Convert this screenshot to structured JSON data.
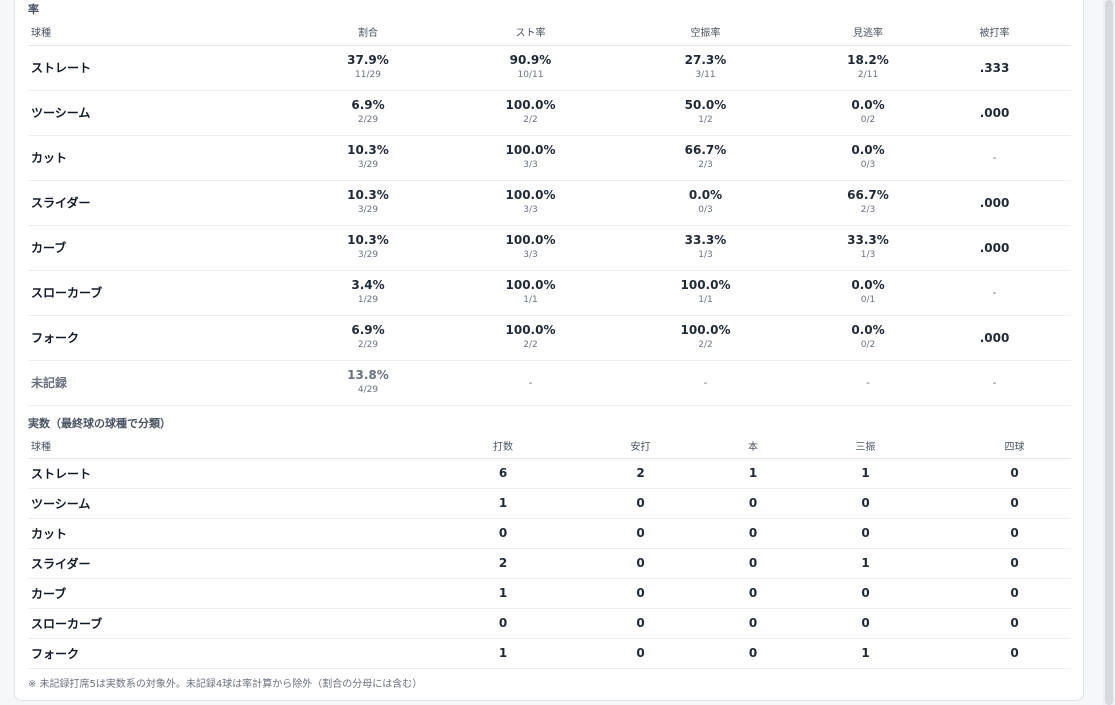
{
  "rates": {
    "title": "率",
    "headers": [
      "球種",
      "割合",
      "スト率",
      "空振率",
      "見逃率",
      "被打率"
    ],
    "rows": [
      {
        "name": "ストレート",
        "share": "37.9%",
        "share_sub": "11/29",
        "strike": "90.9%",
        "strike_sub": "10/11",
        "whiff": "27.3%",
        "whiff_sub": "3/11",
        "looking": "18.2%",
        "looking_sub": "2/11",
        "avg": ".333"
      },
      {
        "name": "ツーシーム",
        "share": "6.9%",
        "share_sub": "2/29",
        "strike": "100.0%",
        "strike_sub": "2/2",
        "whiff": "50.0%",
        "whiff_sub": "1/2",
        "looking": "0.0%",
        "looking_sub": "0/2",
        "avg": ".000"
      },
      {
        "name": "カット",
        "share": "10.3%",
        "share_sub": "3/29",
        "strike": "100.0%",
        "strike_sub": "3/3",
        "whiff": "66.7%",
        "whiff_sub": "2/3",
        "looking": "0.0%",
        "looking_sub": "0/3",
        "avg": "-"
      },
      {
        "name": "スライダー",
        "share": "10.3%",
        "share_sub": "3/29",
        "strike": "100.0%",
        "strike_sub": "3/3",
        "whiff": "0.0%",
        "whiff_sub": "0/3",
        "looking": "66.7%",
        "looking_sub": "2/3",
        "avg": ".000"
      },
      {
        "name": "カーブ",
        "share": "10.3%",
        "share_sub": "3/29",
        "strike": "100.0%",
        "strike_sub": "3/3",
        "whiff": "33.3%",
        "whiff_sub": "1/3",
        "looking": "33.3%",
        "looking_sub": "1/3",
        "avg": ".000"
      },
      {
        "name": "スローカーブ",
        "share": "3.4%",
        "share_sub": "1/29",
        "strike": "100.0%",
        "strike_sub": "1/1",
        "whiff": "100.0%",
        "whiff_sub": "1/1",
        "looking": "0.0%",
        "looking_sub": "0/1",
        "avg": "-"
      },
      {
        "name": "フォーク",
        "share": "6.9%",
        "share_sub": "2/29",
        "strike": "100.0%",
        "strike_sub": "2/2",
        "whiff": "100.0%",
        "whiff_sub": "2/2",
        "looking": "0.0%",
        "looking_sub": "0/2",
        "avg": ".000"
      }
    ],
    "unrecorded": {
      "name": "未記録",
      "share": "13.8%",
      "share_sub": "4/29",
      "strike": "-",
      "whiff": "-",
      "looking": "-",
      "avg": "-"
    }
  },
  "counts": {
    "title": "実数（最終球の球種で分類）",
    "headers": [
      "球種",
      "打数",
      "安打",
      "本",
      "三振",
      "四球"
    ],
    "rows": [
      {
        "name": "ストレート",
        "ab": "6",
        "hits": "2",
        "hr": "1",
        "so": "1",
        "bb": "0"
      },
      {
        "name": "ツーシーム",
        "ab": "1",
        "hits": "0",
        "hr": "0",
        "so": "0",
        "bb": "0"
      },
      {
        "name": "カット",
        "ab": "0",
        "hits": "0",
        "hr": "0",
        "so": "0",
        "bb": "0"
      },
      {
        "name": "スライダー",
        "ab": "2",
        "hits": "0",
        "hr": "0",
        "so": "1",
        "bb": "0"
      },
      {
        "name": "カーブ",
        "ab": "1",
        "hits": "0",
        "hr": "0",
        "so": "0",
        "bb": "0"
      },
      {
        "name": "スローカーブ",
        "ab": "0",
        "hits": "0",
        "hr": "0",
        "so": "0",
        "bb": "0"
      },
      {
        "name": "フォーク",
        "ab": "1",
        "hits": "0",
        "hr": "0",
        "so": "1",
        "bb": "0"
      }
    ]
  },
  "note": "※ 未記録打席5は実数系の対象外。未記録4球は率計算から除外（割合の分母には含む）"
}
